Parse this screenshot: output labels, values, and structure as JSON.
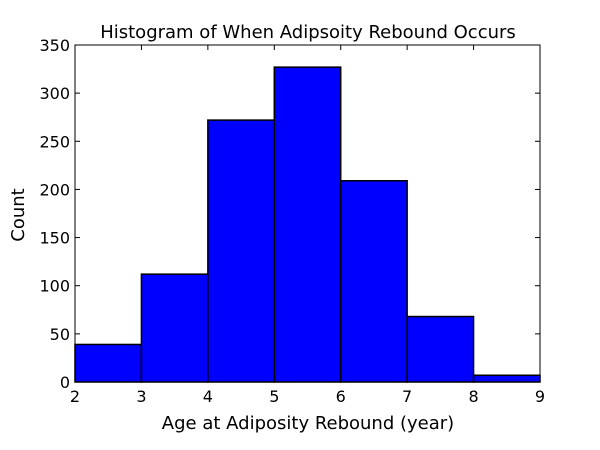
{
  "chart_data": {
    "type": "bar",
    "title": "Histogram of When Adipsoity Rebound Occurs",
    "xlabel": "Age at Adiposity Rebound (year)",
    "ylabel": "Count",
    "bins": [
      {
        "x0": 2,
        "x1": 3,
        "count": 39
      },
      {
        "x0": 3,
        "x1": 4,
        "count": 112
      },
      {
        "x0": 4,
        "x1": 5,
        "count": 272
      },
      {
        "x0": 5,
        "x1": 6,
        "count": 327
      },
      {
        "x0": 6,
        "x1": 7,
        "count": 209
      },
      {
        "x0": 7,
        "x1": 8,
        "count": 68
      },
      {
        "x0": 8,
        "x1": 9,
        "count": 7
      }
    ],
    "xlim": [
      2,
      9
    ],
    "ylim": [
      0,
      350
    ],
    "xticks": [
      2,
      3,
      4,
      5,
      6,
      7,
      8,
      9
    ],
    "yticks": [
      0,
      50,
      100,
      150,
      200,
      250,
      300,
      350
    ],
    "grid": false,
    "bar_color": "#0000ff",
    "edge_color": "#000000"
  }
}
